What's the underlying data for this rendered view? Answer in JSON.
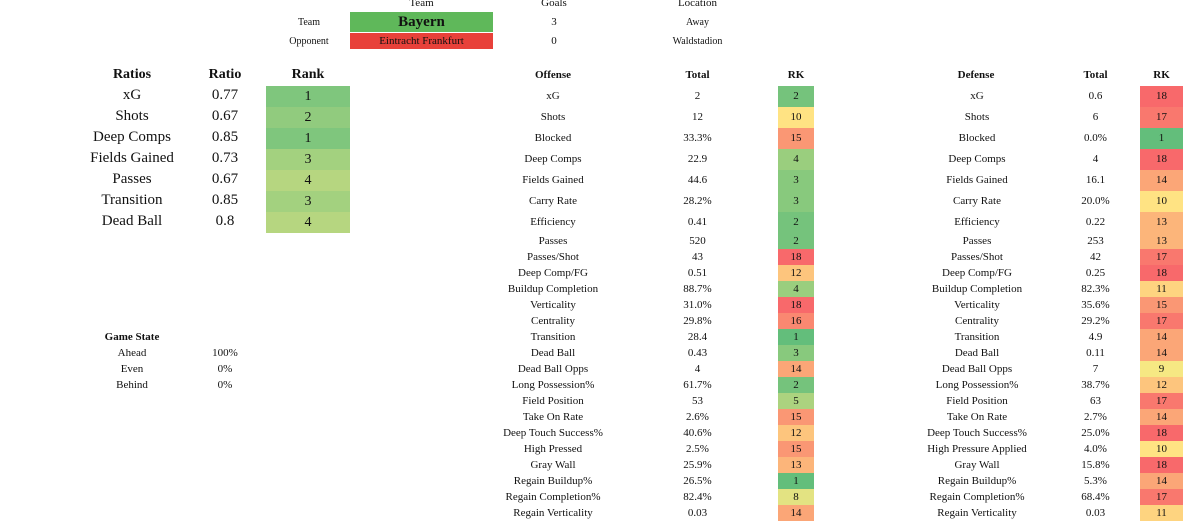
{
  "match": {
    "team_hdr": "Team",
    "goals_hdr": "Goals",
    "location_hdr": "Location",
    "team_label": "Team",
    "opponent_label": "Opponent",
    "team_name": "Bayern",
    "opponent_name": "Eintracht Frankfurt",
    "team_goals": "3",
    "opponent_goals": "0",
    "team_location": "Away",
    "opponent_location": "Waldstadion"
  },
  "ratios": {
    "headers": {
      "name": "Ratios",
      "value": "Ratio",
      "rank": "Rank"
    },
    "rows": [
      {
        "label": "xG",
        "value": "0.77",
        "rank": "1"
      },
      {
        "label": "Shots",
        "value": "0.67",
        "rank": "2"
      },
      {
        "label": "Deep Comps",
        "value": "0.85",
        "rank": "1"
      },
      {
        "label": "Fields Gained",
        "value": "0.73",
        "rank": "3"
      },
      {
        "label": "Passes",
        "value": "0.67",
        "rank": "4"
      },
      {
        "label": "Transition",
        "value": "0.85",
        "rank": "3"
      },
      {
        "label": "Dead Ball",
        "value": "0.8",
        "rank": "4"
      }
    ]
  },
  "game_state": {
    "title": "Game State",
    "rows": [
      {
        "label": "Ahead",
        "value": "100%"
      },
      {
        "label": "Even",
        "value": "0%"
      },
      {
        "label": "Behind",
        "value": "0%"
      }
    ]
  },
  "offense": {
    "headers": {
      "name": "Offense",
      "total": "Total",
      "rank": "RK"
    },
    "rows": [
      {
        "label": "xG",
        "total": "2",
        "rank": "2"
      },
      {
        "label": "Shots",
        "total": "12",
        "rank": "10"
      },
      {
        "label": "Blocked",
        "total": "33.3%",
        "rank": "15"
      },
      {
        "label": "Deep Comps",
        "total": "22.9",
        "rank": "4"
      },
      {
        "label": "Fields Gained",
        "total": "44.6",
        "rank": "3"
      },
      {
        "label": "Carry Rate",
        "total": "28.2%",
        "rank": "3"
      },
      {
        "label": "Efficiency",
        "total": "0.41",
        "rank": "2"
      },
      {
        "label": "Passes",
        "total": "520",
        "rank": "2"
      },
      {
        "label": "Passes/Shot",
        "total": "43",
        "rank": "18"
      },
      {
        "label": "Deep Comp/FG",
        "total": "0.51",
        "rank": "12"
      },
      {
        "label": "Buildup Completion",
        "total": "88.7%",
        "rank": "4"
      },
      {
        "label": "Verticality",
        "total": "31.0%",
        "rank": "18"
      },
      {
        "label": "Centrality",
        "total": "29.8%",
        "rank": "16"
      },
      {
        "label": "Transition",
        "total": "28.4",
        "rank": "1"
      },
      {
        "label": "Dead Ball",
        "total": "0.43",
        "rank": "3"
      },
      {
        "label": "Dead Ball Opps",
        "total": "4",
        "rank": "14"
      },
      {
        "label": "Long Possession%",
        "total": "61.7%",
        "rank": "2"
      },
      {
        "label": "Field Position",
        "total": "53",
        "rank": "5"
      },
      {
        "label": "Take On Rate",
        "total": "2.6%",
        "rank": "15"
      },
      {
        "label": "Deep Touch Success%",
        "total": "40.6%",
        "rank": "12"
      },
      {
        "label": "High Pressed",
        "total": "2.5%",
        "rank": "15"
      },
      {
        "label": "Gray Wall",
        "total": "25.9%",
        "rank": "13"
      },
      {
        "label": "Regain Buildup%",
        "total": "26.5%",
        "rank": "1"
      },
      {
        "label": "Regain Completion%",
        "total": "82.4%",
        "rank": "8"
      },
      {
        "label": "Regain Verticality",
        "total": "0.03",
        "rank": "14"
      }
    ]
  },
  "defense": {
    "headers": {
      "name": "Defense",
      "total": "Total",
      "rank": "RK"
    },
    "rows": [
      {
        "label": "xG",
        "total": "0.6",
        "rank": "18"
      },
      {
        "label": "Shots",
        "total": "6",
        "rank": "17"
      },
      {
        "label": "Blocked",
        "total": "0.0%",
        "rank": "1"
      },
      {
        "label": "Deep Comps",
        "total": "4",
        "rank": "18"
      },
      {
        "label": "Fields Gained",
        "total": "16.1",
        "rank": "14"
      },
      {
        "label": "Carry Rate",
        "total": "20.0%",
        "rank": "10"
      },
      {
        "label": "Efficiency",
        "total": "0.22",
        "rank": "13"
      },
      {
        "label": "Passes",
        "total": "253",
        "rank": "13"
      },
      {
        "label": "Passes/Shot",
        "total": "42",
        "rank": "17"
      },
      {
        "label": "Deep Comp/FG",
        "total": "0.25",
        "rank": "18"
      },
      {
        "label": "Buildup Completion",
        "total": "82.3%",
        "rank": "11"
      },
      {
        "label": "Verticality",
        "total": "35.6%",
        "rank": "15"
      },
      {
        "label": "Centrality",
        "total": "29.2%",
        "rank": "17"
      },
      {
        "label": "Transition",
        "total": "4.9",
        "rank": "14"
      },
      {
        "label": "Dead Ball",
        "total": "0.11",
        "rank": "14"
      },
      {
        "label": "Dead Ball Opps",
        "total": "7",
        "rank": "9"
      },
      {
        "label": "Long Possession%",
        "total": "38.7%",
        "rank": "12"
      },
      {
        "label": "Field Position",
        "total": "63",
        "rank": "17"
      },
      {
        "label": "Take On Rate",
        "total": "2.7%",
        "rank": "14"
      },
      {
        "label": "Deep Touch Success%",
        "total": "25.0%",
        "rank": "18"
      },
      {
        "label": "High Pressure Applied",
        "total": "4.0%",
        "rank": "10"
      },
      {
        "label": "Gray Wall",
        "total": "15.8%",
        "rank": "18"
      },
      {
        "label": "Regain Buildup%",
        "total": "5.3%",
        "rank": "14"
      },
      {
        "label": "Regain Completion%",
        "total": "68.4%",
        "rank": "17"
      },
      {
        "label": "Regain Verticality",
        "total": "0.03",
        "rank": "11"
      }
    ]
  }
}
